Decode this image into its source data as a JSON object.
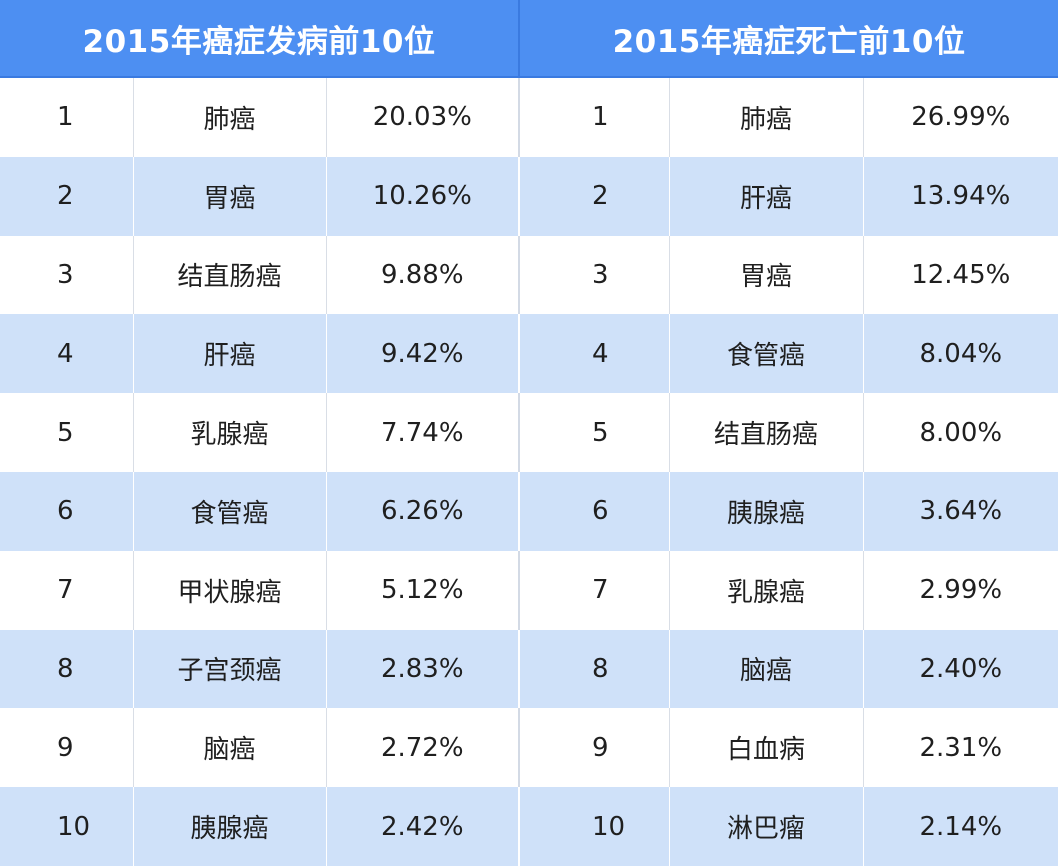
{
  "headers": {
    "incidence": "2015年癌症发病前10位",
    "mortality": "2015年癌症死亡前10位"
  },
  "rows": [
    {
      "incidence": {
        "rank": "1",
        "name": "肺癌",
        "pct": "20.03%"
      },
      "mortality": {
        "rank": "1",
        "name": "肺癌",
        "pct": "26.99%"
      }
    },
    {
      "incidence": {
        "rank": "2",
        "name": "胃癌",
        "pct": "10.26%"
      },
      "mortality": {
        "rank": "2",
        "name": "肝癌",
        "pct": "13.94%"
      }
    },
    {
      "incidence": {
        "rank": "3",
        "name": "结直肠癌",
        "pct": "9.88%"
      },
      "mortality": {
        "rank": "3",
        "name": "胃癌",
        "pct": "12.45%"
      }
    },
    {
      "incidence": {
        "rank": "4",
        "name": "肝癌",
        "pct": "9.42%"
      },
      "mortality": {
        "rank": "4",
        "name": "食管癌",
        "pct": "8.04%"
      }
    },
    {
      "incidence": {
        "rank": "5",
        "name": "乳腺癌",
        "pct": "7.74%"
      },
      "mortality": {
        "rank": "5",
        "name": "结直肠癌",
        "pct": "8.00%"
      }
    },
    {
      "incidence": {
        "rank": "6",
        "name": "食管癌",
        "pct": "6.26%"
      },
      "mortality": {
        "rank": "6",
        "name": "胰腺癌",
        "pct": "3.64%"
      }
    },
    {
      "incidence": {
        "rank": "7",
        "name": "甲状腺癌",
        "pct": "5.12%"
      },
      "mortality": {
        "rank": "7",
        "name": "乳腺癌",
        "pct": "2.99%"
      }
    },
    {
      "incidence": {
        "rank": "8",
        "name": "子宫颈癌",
        "pct": "2.83%"
      },
      "mortality": {
        "rank": "8",
        "name": "脑癌",
        "pct": "2.40%"
      }
    },
    {
      "incidence": {
        "rank": "9",
        "name": "脑癌",
        "pct": "2.72%"
      },
      "mortality": {
        "rank": "9",
        "name": "白血病",
        "pct": "2.31%"
      }
    },
    {
      "incidence": {
        "rank": "10",
        "name": "胰腺癌",
        "pct": "2.42%"
      },
      "mortality": {
        "rank": "10",
        "name": "淋巴瘤",
        "pct": "2.14%"
      }
    }
  ],
  "colors": {
    "header_bg": "#4d8ff2",
    "header_text": "#ffffff",
    "row_odd": "#ffffff",
    "row_even": "#cfe1f9"
  }
}
